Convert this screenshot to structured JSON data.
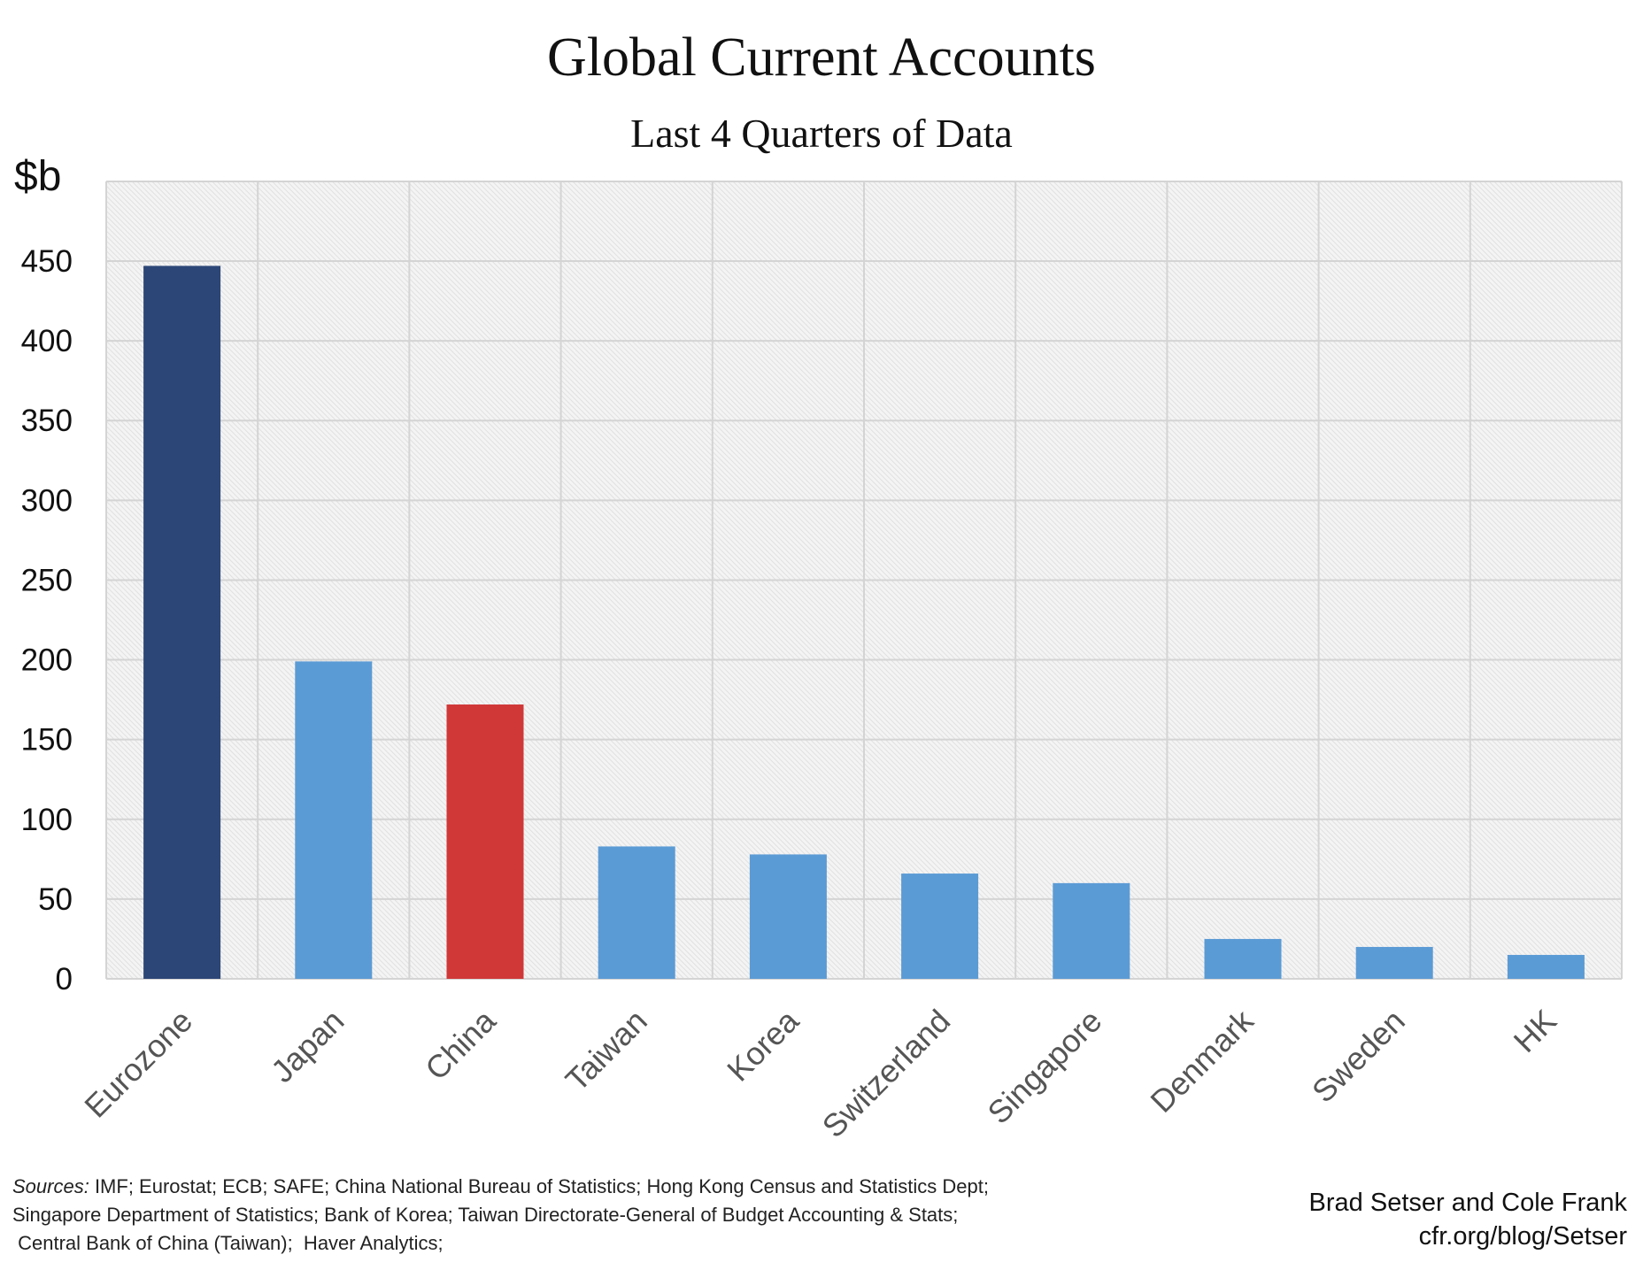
{
  "chart_data": {
    "type": "bar",
    "title": "Global Current Accounts",
    "subtitle": "Last 4 Quarters of Data",
    "ylabel": "$b",
    "xlabel": "",
    "ylim": [
      0,
      500
    ],
    "yticks": [
      0,
      50,
      100,
      150,
      200,
      250,
      300,
      350,
      400,
      450
    ],
    "grid": true,
    "categories": [
      "Eurozone",
      "Japan",
      "China",
      "Taiwan",
      "Korea",
      "Switzerland",
      "Singapore",
      "Denmark",
      "Sweden",
      "HK"
    ],
    "values": [
      447,
      199,
      172,
      83,
      78,
      66,
      60,
      25,
      20,
      15
    ],
    "colors": [
      "#2c4677",
      "#5b9bd5",
      "#d03838",
      "#5b9bd5",
      "#5b9bd5",
      "#5b9bd5",
      "#5b9bd5",
      "#5b9bd5",
      "#5b9bd5",
      "#5b9bd5"
    ]
  },
  "footer": {
    "sources_label": "Sources:",
    "sources_lines": [
      " IMF; Eurostat; ECB; SAFE; China National Bureau of Statistics; Hong Kong Census and Statistics Dept;",
      "Singapore Department of Statistics; Bank of Korea; Taiwan Directorate-General of Budget Accounting & Stats;",
      " Central Bank of China (Taiwan);  Haver Analytics;"
    ],
    "credit_authors": "Brad Setser and Cole Frank",
    "credit_url": "cfr.org/blog/Setser"
  }
}
